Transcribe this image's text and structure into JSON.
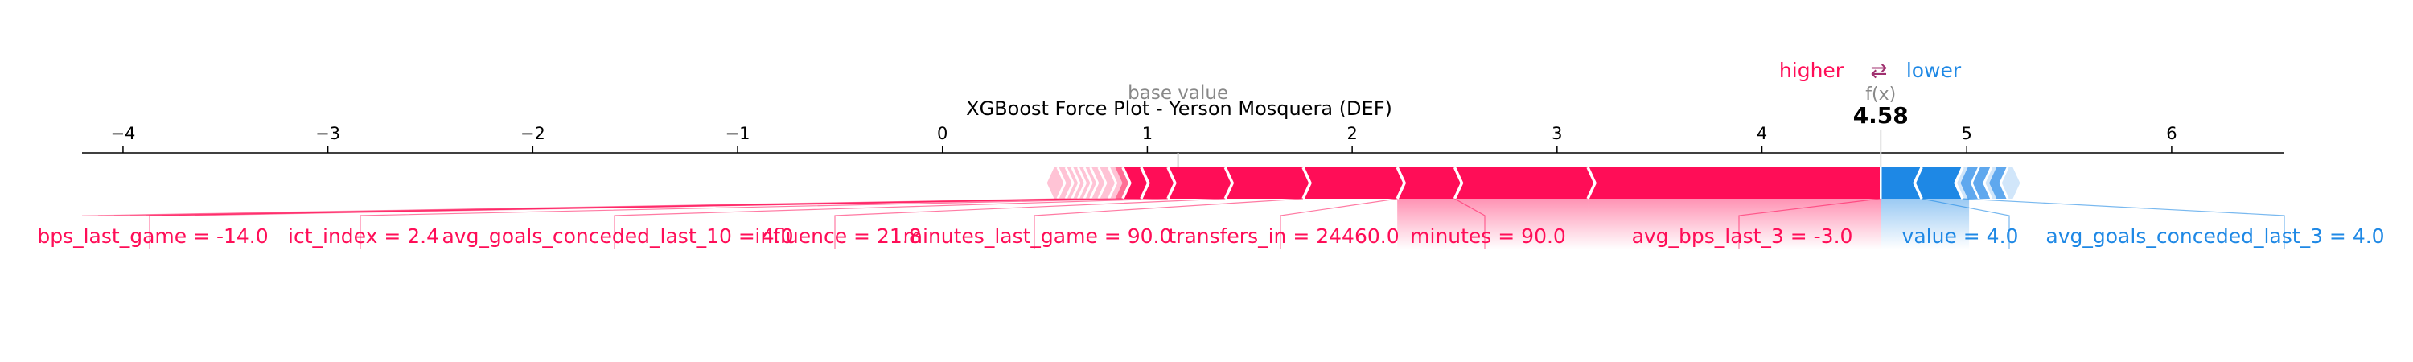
{
  "chart_data": {
    "type": "force",
    "title": "XGBoost Force Plot - Yerson Mosquera (DEF)",
    "legend": {
      "higher": "higher",
      "arrows": "⇄",
      "lower": "lower",
      "placement": "top-right"
    },
    "base_value_label": "base value",
    "fx_label": "f(x)",
    "base_value": 1.15,
    "fx": 4.58,
    "fx_text": "4.58",
    "xlim": [
      -4.2,
      6.55
    ],
    "ticks": [
      -4,
      -3,
      -2,
      -1,
      0,
      1,
      2,
      3,
      4,
      5,
      6
    ],
    "tick_labels": [
      "−4",
      "−3",
      "−2",
      "−1",
      "0",
      "1",
      "2",
      "3",
      "4",
      "5",
      "6"
    ],
    "positive_features": [
      {
        "label": "avg_bps_last_3 = -3.0",
        "start": 3.15,
        "end": 4.58
      },
      {
        "label": "minutes = 90.0",
        "start": 2.5,
        "end": 3.15
      },
      {
        "label": "transfers_in = 24460.0",
        "start": 2.22,
        "end": 2.5
      },
      {
        "label": "minutes_last_game = 90.0",
        "start": 1.76,
        "end": 2.22
      },
      {
        "label": "influence = 21.8",
        "start": 1.38,
        "end": 1.76
      },
      {
        "label": "avg_goals_conceded_last_10 = 4.0",
        "start": 1.1,
        "end": 1.38
      },
      {
        "label": "ict_index = 2.4",
        "start": 0.97,
        "end": 1.1
      },
      {
        "label": "bps_last_game = -14.0",
        "start": 0.88,
        "end": 0.97
      }
    ],
    "positive_small_segments": [
      0.82,
      0.77,
      0.73,
      0.7,
      0.67,
      0.64,
      0.61,
      0.57
    ],
    "negative_features": [
      {
        "label": "value = 4.0",
        "start": 4.58,
        "end": 4.78
      },
      {
        "label": "avg_goals_conceded_last_3 = 4.0",
        "start": 4.78,
        "end": 4.98
      }
    ],
    "negative_small_segments": [
      5.06,
      5.12,
      5.2
    ],
    "colors": {
      "positive": "#ff0d57",
      "negative": "#1e88e5",
      "positive_light": "#ffc3d5",
      "negative_light": "#d1e6fa"
    }
  }
}
